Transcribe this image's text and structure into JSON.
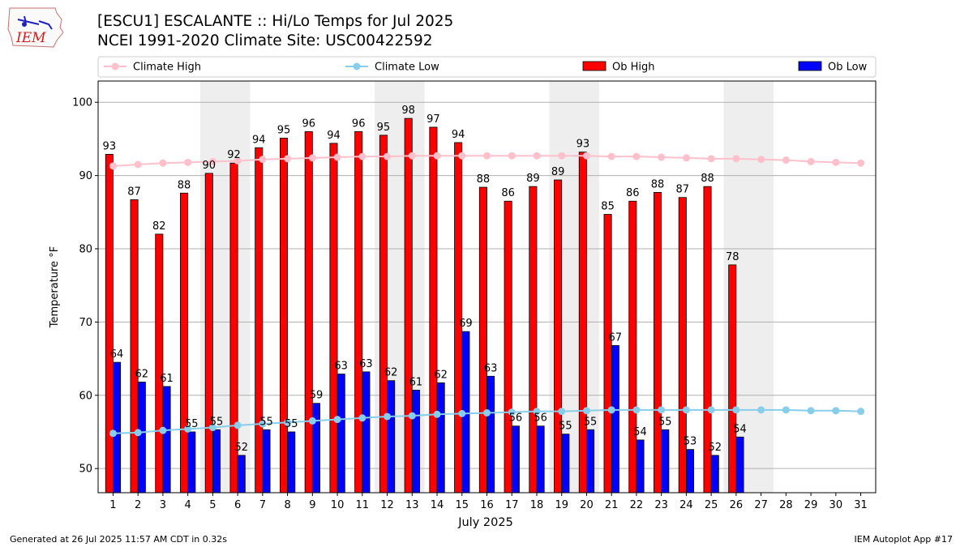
{
  "header": {
    "title_line1": "[ESCU1] ESCALANTE :: Hi/Lo Temps for Jul 2025",
    "title_line2": "NCEI 1991-2020 Climate Site: USC00422592",
    "logo_text": "IEM"
  },
  "footer": {
    "generated": "Generated at 26 Jul 2025 11:57 AM CDT in 0.32s",
    "app": "IEM Autoplot App #17"
  },
  "colors": {
    "ob_high": "#ff0000",
    "ob_low": "#0000ff",
    "climate_high": "#ffc0cb",
    "climate_low": "#87ceeb",
    "weekend_shade": "#eeeeee"
  },
  "chart_data": {
    "type": "bar",
    "xlabel": "July 2025",
    "ylabel": "Temperature °F",
    "ylim": [
      46.7,
      102.9
    ],
    "yticks": [
      50,
      60,
      70,
      80,
      90,
      100
    ],
    "grid": "horizontal",
    "legend_placement": "top",
    "x": [
      1,
      2,
      3,
      4,
      5,
      6,
      7,
      8,
      9,
      10,
      11,
      12,
      13,
      14,
      15,
      16,
      17,
      18,
      19,
      20,
      21,
      22,
      23,
      24,
      25,
      26,
      27,
      28,
      29,
      30,
      31
    ],
    "weekend_days": [
      [
        5,
        6
      ],
      [
        12,
        13
      ],
      [
        19,
        20
      ],
      [
        26,
        27
      ]
    ],
    "series": [
      {
        "name": "Ob High",
        "kind": "bar",
        "values": [
          93,
          87,
          82,
          88,
          90,
          92,
          94,
          95,
          96,
          94,
          96,
          95,
          98,
          97,
          94,
          88,
          86,
          89,
          89,
          93,
          85,
          86,
          88,
          87,
          88,
          78,
          null,
          null,
          null,
          null,
          null
        ],
        "exact": [
          92.9,
          86.7,
          82.0,
          87.6,
          90.3,
          91.7,
          93.8,
          95.1,
          96.0,
          94.4,
          96.0,
          95.5,
          97.8,
          96.6,
          94.5,
          88.4,
          86.5,
          88.5,
          89.4,
          93.2,
          84.7,
          86.5,
          87.7,
          87.0,
          88.5,
          77.8,
          null,
          null,
          null,
          null,
          null
        ]
      },
      {
        "name": "Ob Low",
        "kind": "bar",
        "values": [
          64,
          62,
          61,
          55,
          55,
          52,
          55,
          55,
          59,
          63,
          63,
          62,
          61,
          62,
          69,
          63,
          56,
          56,
          55,
          55,
          67,
          54,
          55,
          53,
          52,
          54,
          null,
          null,
          null,
          null,
          null
        ],
        "exact": [
          64.5,
          61.8,
          61.2,
          55.0,
          55.3,
          51.8,
          55.3,
          55.0,
          58.9,
          62.9,
          63.2,
          62.0,
          60.7,
          61.7,
          68.7,
          62.6,
          55.8,
          55.8,
          54.7,
          55.3,
          66.8,
          53.9,
          55.3,
          52.6,
          51.8,
          54.3,
          null,
          null,
          null,
          null,
          null
        ]
      },
      {
        "name": "Climate High",
        "kind": "line",
        "values": [
          91.3,
          91.5,
          91.7,
          91.8,
          91.9,
          92.0,
          92.2,
          92.3,
          92.4,
          92.5,
          92.6,
          92.6,
          92.7,
          92.7,
          92.7,
          92.7,
          92.7,
          92.7,
          92.7,
          92.7,
          92.6,
          92.6,
          92.5,
          92.4,
          92.3,
          92.3,
          92.2,
          92.1,
          91.9,
          91.8,
          91.7
        ]
      },
      {
        "name": "Climate Low",
        "kind": "line",
        "values": [
          54.8,
          54.9,
          55.2,
          55.4,
          55.6,
          55.9,
          56.1,
          56.3,
          56.5,
          56.7,
          56.9,
          57.1,
          57.2,
          57.4,
          57.5,
          57.6,
          57.7,
          57.8,
          57.8,
          57.9,
          58.0,
          58.0,
          58.0,
          58.0,
          58.0,
          58.0,
          58.0,
          58.0,
          57.9,
          57.9,
          57.8
        ]
      }
    ]
  }
}
